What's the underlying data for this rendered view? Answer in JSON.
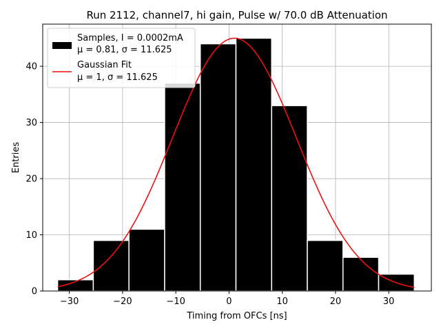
{
  "chart_data": {
    "type": "bar",
    "title": "Run 2112, channel7, hi gain, Pulse w/ 70.0 dB Attenuation",
    "xlabel": "Timing from OFCs [ns]",
    "ylabel": "Entries",
    "xlim": [
      -35,
      38
    ],
    "ylim": [
      0,
      47.5
    ],
    "xticks": [
      -30,
      -20,
      -10,
      0,
      10,
      20,
      30
    ],
    "yticks": [
      0,
      10,
      20,
      30,
      40
    ],
    "grid": true,
    "legend_position": "top-left",
    "histogram": {
      "name": "Samples, I = 0.0002mA",
      "stats_label": "μ = 0.81, σ = 11.625",
      "color": "#000000",
      "bin_edges": [
        -32.2,
        -25.5,
        -18.8,
        -12.1,
        -5.4,
        1.3,
        8.0,
        14.7,
        21.4,
        28.1,
        34.8
      ],
      "counts": [
        2,
        9,
        11,
        37,
        44,
        45,
        33,
        9,
        6,
        3
      ]
    },
    "fit": {
      "name": "Gaussian Fit",
      "stats_label": "μ = 1, σ = 11.625",
      "color": "#ee1111",
      "mu": 1.0,
      "sigma": 11.625,
      "amplitude": 45.0,
      "x_range": [
        -32.2,
        34.8
      ]
    }
  }
}
